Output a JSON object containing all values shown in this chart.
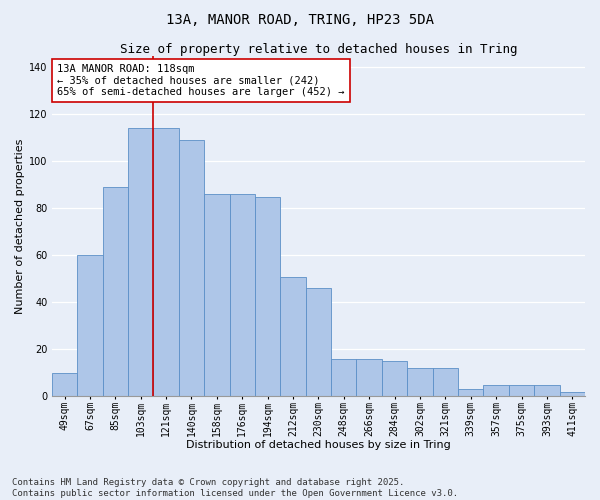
{
  "title_line1": "13A, MANOR ROAD, TRING, HP23 5DA",
  "title_line2": "Size of property relative to detached houses in Tring",
  "xlabel": "Distribution of detached houses by size in Tring",
  "ylabel": "Number of detached properties",
  "categories": [
    "49sqm",
    "67sqm",
    "85sqm",
    "103sqm",
    "121sqm",
    "140sqm",
    "158sqm",
    "176sqm",
    "194sqm",
    "212sqm",
    "230sqm",
    "248sqm",
    "266sqm",
    "284sqm",
    "302sqm",
    "321sqm",
    "339sqm",
    "357sqm",
    "375sqm",
    "393sqm",
    "411sqm"
  ],
  "values": [
    10,
    60,
    89,
    114,
    114,
    109,
    86,
    86,
    85,
    51,
    46,
    16,
    16,
    15,
    12,
    12,
    3,
    5,
    5,
    5,
    2
  ],
  "bar_color": "#aec6e8",
  "bar_edge_color": "#5b8fc7",
  "background_color": "#e8eef8",
  "vline_color": "#cc0000",
  "vline_x_index": 3.5,
  "annotation_text": "13A MANOR ROAD: 118sqm\n← 35% of detached houses are smaller (242)\n65% of semi-detached houses are larger (452) →",
  "annotation_box_facecolor": "#ffffff",
  "annotation_box_edgecolor": "#cc0000",
  "ylim": [
    0,
    145
  ],
  "yticks": [
    0,
    20,
    40,
    60,
    80,
    100,
    120,
    140
  ],
  "grid_color": "#ffffff",
  "title_fontsize": 10,
  "subtitle_fontsize": 9,
  "axis_label_fontsize": 8,
  "tick_fontsize": 7,
  "annotation_fontsize": 7.5,
  "footer_fontsize": 6.5,
  "footer_line1": "Contains HM Land Registry data © Crown copyright and database right 2025.",
  "footer_line2": "Contains public sector information licensed under the Open Government Licence v3.0."
}
